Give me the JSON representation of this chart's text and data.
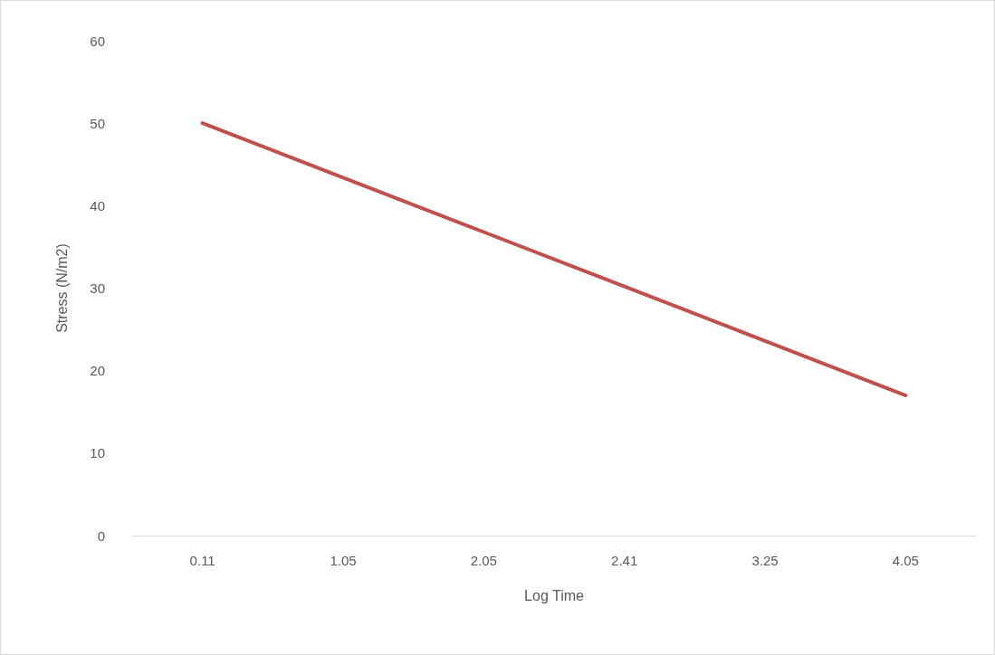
{
  "chart_data": {
    "type": "line",
    "xlabel": "Log Time",
    "ylabel": "Stress (N/m2)",
    "categories": [
      "0.11",
      "1.05",
      "2.05",
      "2.41",
      "3.25",
      "4.05"
    ],
    "series": [
      {
        "color": "#c0504d",
        "values": [
          50,
          43.4,
          36.8,
          30.2,
          23.6,
          17
        ]
      }
    ],
    "ylim": [
      0,
      60
    ],
    "yticks": [
      0,
      10,
      20,
      30,
      40,
      50,
      60
    ],
    "grid": false,
    "marker": "none",
    "line_style": "solid"
  }
}
